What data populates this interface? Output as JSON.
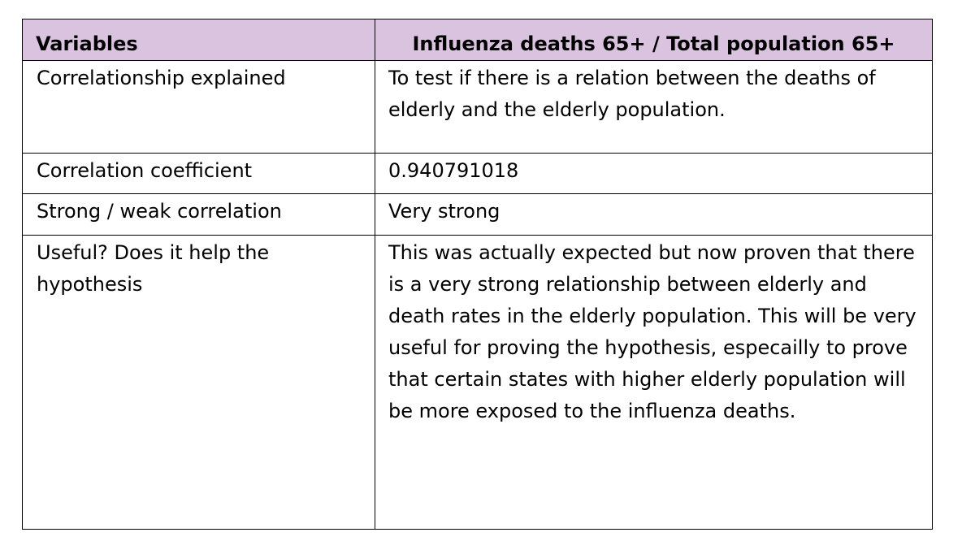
{
  "table": {
    "header": {
      "col1": "Variables",
      "col2": "Influenza deaths 65+ / Total population 65+"
    },
    "rows": [
      {
        "label": "Correlationship explained",
        "value": "To test if there is a relation between the deaths of elderly and the elderly population."
      },
      {
        "label": "Correlation coefficient",
        "value": "0.940791018"
      },
      {
        "label": "Strong / weak correlation",
        "value": "Very strong"
      },
      {
        "label": "Useful? Does it help the hypothesis",
        "value": "This was actually expected but now proven that there is a very strong relationship between elderly and death rates in the elderly population. This will be very useful for proving the hypothesis, especailly to prove that certain states with higher elderly population will be more exposed to the influenza deaths."
      }
    ]
  },
  "colors": {
    "header_background": "#d9c3df",
    "border": "#000000",
    "text": "#000000"
  }
}
